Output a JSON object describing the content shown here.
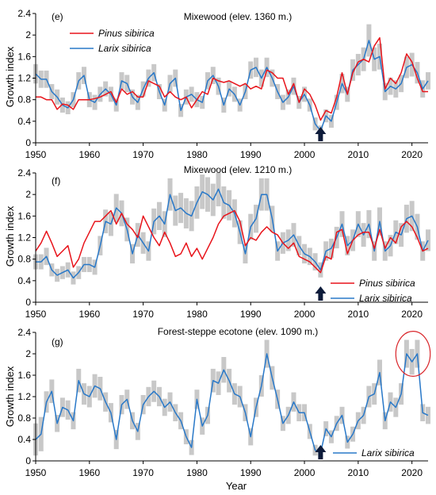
{
  "colors": {
    "pinus": "#e8141b",
    "larix": "#2878c8",
    "band": "#c8c8c8",
    "arrow": "#0d1b3a",
    "highlight": "#d9262b",
    "axis": "#000000"
  },
  "chart_data": [
    {
      "type": "line",
      "id": "e",
      "label": "(e)",
      "title": "Mixewood (elev. 1360 m.)",
      "ylabel": "Growth index",
      "xlabel": "",
      "xlim": [
        1950,
        2023
      ],
      "ylim": [
        0,
        2.4
      ],
      "xticks": [
        "1950",
        "1960",
        "1970",
        "1980",
        "1990",
        "2000",
        "2010",
        "2020"
      ],
      "yticks": [
        "0",
        "0.4",
        "0.8",
        "1.2",
        "1.6",
        "2",
        "2.4"
      ],
      "legend_position": "top-left",
      "arrow_year": 2003,
      "x": [
        1950,
        1951,
        1952,
        1953,
        1954,
        1955,
        1956,
        1957,
        1958,
        1959,
        1960,
        1961,
        1962,
        1963,
        1964,
        1965,
        1966,
        1967,
        1968,
        1969,
        1970,
        1971,
        1972,
        1973,
        1974,
        1975,
        1976,
        1977,
        1978,
        1979,
        1980,
        1981,
        1982,
        1983,
        1984,
        1985,
        1986,
        1987,
        1988,
        1989,
        1990,
        1991,
        1992,
        1993,
        1994,
        1995,
        1996,
        1997,
        1998,
        1999,
        2000,
        2001,
        2002,
        2003,
        2004,
        2005,
        2006,
        2007,
        2008,
        2009,
        2010,
        2011,
        2012,
        2013,
        2014,
        2015,
        2016,
        2017,
        2018,
        2019,
        2020,
        2021,
        2022,
        2023
      ],
      "series": [
        {
          "name": "Pinus sibirica",
          "color_key": "pinus",
          "legend_order": 1,
          "values": [
            0.85,
            0.85,
            0.8,
            0.8,
            0.62,
            0.72,
            0.7,
            0.62,
            0.8,
            0.8,
            0.8,
            0.82,
            0.85,
            0.9,
            0.95,
            0.75,
            1.0,
            0.9,
            0.95,
            0.85,
            0.85,
            1.15,
            1.1,
            1.05,
            0.85,
            0.95,
            0.85,
            0.8,
            0.85,
            0.65,
            0.8,
            0.95,
            0.9,
            1.2,
            1.15,
            1.12,
            1.15,
            1.1,
            1.05,
            1.1,
            1.0,
            1.05,
            1.0,
            1.35,
            1.3,
            1.2,
            1.2,
            0.9,
            1.1,
            0.75,
            1.0,
            0.9,
            0.7,
            0.42,
            0.6,
            0.55,
            0.85,
            1.3,
            0.9,
            1.3,
            1.5,
            1.55,
            1.5,
            1.8,
            1.95,
            1.0,
            1.2,
            1.1,
            1.3,
            1.65,
            1.5,
            1.2,
            0.95,
            0.95
          ]
        },
        {
          "name": "Larix sibirica",
          "color_key": "larix",
          "legend_order": 2,
          "values": [
            1.28,
            1.18,
            1.18,
            0.95,
            0.85,
            0.7,
            0.65,
            0.8,
            1.15,
            1.25,
            0.8,
            0.75,
            0.9,
            1.0,
            0.9,
            0.7,
            1.15,
            1.1,
            0.85,
            0.75,
            1.0,
            1.2,
            1.3,
            0.95,
            0.7,
            1.1,
            1.2,
            0.6,
            0.85,
            0.9,
            0.8,
            0.75,
            1.15,
            1.25,
            1.05,
            0.7,
            1.0,
            0.9,
            0.7,
            0.95,
            1.35,
            1.4,
            1.2,
            1.4,
            1.2,
            0.95,
            0.75,
            0.85,
            1.05,
            0.75,
            0.9,
            0.7,
            0.35,
            0.22,
            0.5,
            0.4,
            0.75,
            1.1,
            0.9,
            1.35,
            1.45,
            1.55,
            1.9,
            1.55,
            1.6,
            0.95,
            1.05,
            1.0,
            1.1,
            1.4,
            1.45,
            1.3,
            1.0,
            1.15
          ]
        }
      ],
      "band_series": "larix",
      "band_halfwidth": [
        0.18,
        0.16,
        0.16,
        0.14,
        0.14,
        0.14,
        0.12,
        0.14,
        0.16,
        0.16,
        0.14,
        0.14,
        0.14,
        0.14,
        0.14,
        0.12,
        0.16,
        0.16,
        0.14,
        0.14,
        0.14,
        0.16,
        0.16,
        0.14,
        0.12,
        0.16,
        0.16,
        0.12,
        0.14,
        0.14,
        0.14,
        0.12,
        0.16,
        0.16,
        0.16,
        0.14,
        0.14,
        0.14,
        0.12,
        0.14,
        0.16,
        0.18,
        0.16,
        0.18,
        0.16,
        0.14,
        0.14,
        0.14,
        0.16,
        0.12,
        0.14,
        0.12,
        0.12,
        0.1,
        0.12,
        0.12,
        0.14,
        0.18,
        0.14,
        0.2,
        0.2,
        0.22,
        0.3,
        0.22,
        0.24,
        0.16,
        0.16,
        0.16,
        0.16,
        0.2,
        0.22,
        0.2,
        0.16,
        0.16
      ]
    },
    {
      "type": "line",
      "id": "f",
      "label": "(f)",
      "title": "Mixewood (elev. 1210 m.)",
      "ylabel": "Growth index",
      "xlabel": "",
      "xlim": [
        1950,
        2023
      ],
      "ylim": [
        0,
        2.4
      ],
      "xticks": [
        "1950",
        "1960",
        "1970",
        "1980",
        "1990",
        "2000",
        "2010",
        "2020"
      ],
      "yticks": [
        "0",
        "0.4",
        "0.8",
        "1.2",
        "1.6",
        "2",
        "2.4"
      ],
      "legend_position": "bottom-right",
      "arrow_year": 2003,
      "x": [
        1950,
        1951,
        1952,
        1953,
        1954,
        1955,
        1956,
        1957,
        1958,
        1959,
        1960,
        1961,
        1962,
        1963,
        1964,
        1965,
        1966,
        1967,
        1968,
        1969,
        1970,
        1971,
        1972,
        1973,
        1974,
        1975,
        1976,
        1977,
        1978,
        1979,
        1980,
        1981,
        1982,
        1983,
        1984,
        1985,
        1986,
        1987,
        1988,
        1989,
        1990,
        1991,
        1992,
        1993,
        1994,
        1995,
        1996,
        1997,
        1998,
        1999,
        2000,
        2001,
        2002,
        2003,
        2004,
        2005,
        2006,
        2007,
        2008,
        2009,
        2010,
        2011,
        2012,
        2013,
        2014,
        2015,
        2016,
        2017,
        2018,
        2019,
        2020,
        2021,
        2022,
        2023
      ],
      "series": [
        {
          "name": "Pinus sibirica",
          "color_key": "pinus",
          "legend_order": 1,
          "values": [
            0.95,
            1.1,
            1.32,
            1.1,
            0.85,
            0.95,
            1.05,
            0.65,
            0.8,
            1.1,
            1.3,
            1.5,
            1.5,
            1.6,
            1.7,
            1.45,
            1.65,
            1.45,
            1.35,
            1.2,
            1.6,
            1.4,
            1.2,
            1.05,
            1.3,
            1.1,
            0.85,
            0.9,
            1.1,
            0.85,
            1.0,
            0.8,
            1.0,
            1.2,
            1.45,
            1.6,
            1.65,
            1.7,
            1.5,
            1.05,
            1.2,
            1.15,
            1.3,
            1.4,
            1.3,
            1.25,
            1.1,
            1.0,
            1.1,
            0.85,
            0.8,
            0.75,
            0.65,
            0.55,
            0.85,
            0.8,
            1.3,
            1.35,
            0.9,
            1.15,
            1.25,
            1.3,
            1.3,
            1.0,
            1.35,
            1.0,
            1.2,
            1.1,
            1.4,
            1.5,
            1.4,
            1.2,
            0.95,
            1.0
          ]
        },
        {
          "name": "Larix sibirica",
          "color_key": "larix",
          "legend_order": 2,
          "values": [
            0.75,
            0.75,
            0.85,
            0.6,
            0.5,
            0.55,
            0.6,
            0.45,
            0.55,
            0.7,
            0.7,
            0.65,
            1.05,
            1.5,
            1.45,
            1.75,
            1.65,
            1.35,
            0.9,
            1.25,
            1.1,
            0.95,
            1.5,
            1.6,
            1.45,
            2.0,
            1.7,
            1.75,
            1.65,
            1.6,
            1.85,
            2.05,
            2.0,
            1.9,
            2.1,
            1.85,
            1.8,
            1.65,
            1.3,
            0.9,
            1.4,
            1.55,
            2.0,
            2.0,
            1.55,
            0.95,
            1.1,
            1.15,
            1.25,
            1.05,
            0.9,
            0.85,
            0.75,
            0.6,
            0.95,
            1.0,
            1.2,
            1.45,
            1.05,
            1.15,
            1.45,
            1.25,
            1.45,
            0.95,
            1.5,
            0.95,
            1.05,
            1.3,
            1.25,
            1.55,
            1.6,
            1.4,
            0.95,
            1.15
          ]
        }
      ],
      "band_series": "larix",
      "band_halfwidth": [
        0.14,
        0.14,
        0.16,
        0.12,
        0.12,
        0.12,
        0.14,
        0.12,
        0.12,
        0.14,
        0.14,
        0.14,
        0.18,
        0.22,
        0.22,
        0.26,
        0.24,
        0.22,
        0.18,
        0.22,
        0.2,
        0.18,
        0.24,
        0.26,
        0.24,
        0.3,
        0.28,
        0.28,
        0.28,
        0.28,
        0.3,
        0.32,
        0.32,
        0.3,
        0.32,
        0.3,
        0.28,
        0.26,
        0.22,
        0.18,
        0.24,
        0.26,
        0.3,
        0.3,
        0.24,
        0.18,
        0.2,
        0.2,
        0.22,
        0.18,
        0.18,
        0.16,
        0.16,
        0.14,
        0.18,
        0.18,
        0.2,
        0.24,
        0.18,
        0.2,
        0.24,
        0.22,
        0.26,
        0.18,
        0.26,
        0.18,
        0.2,
        0.22,
        0.22,
        0.26,
        0.28,
        0.24,
        0.18,
        0.2
      ]
    },
    {
      "type": "line",
      "id": "g",
      "label": "(g)",
      "title": "Forest-steppe ecotone (elev. 1090 m.)",
      "ylabel": "Growth index",
      "xlabel": "Year",
      "xlim": [
        1950,
        2023
      ],
      "ylim": [
        0,
        2.4
      ],
      "xticks": [
        "1950",
        "1960",
        "1970",
        "1980",
        "1990",
        "2000",
        "2010",
        "2020"
      ],
      "yticks": [
        "0",
        "0.4",
        "0.8",
        "1.2",
        "1.6",
        "2",
        "2.4"
      ],
      "legend_position": "bottom-right",
      "arrow_year": 2003,
      "highlight": {
        "x_center": 2020.2,
        "y_center": 2.0,
        "rx_years": 3.2,
        "ry_values": 0.42
      },
      "x": [
        1950,
        1951,
        1952,
        1953,
        1954,
        1955,
        1956,
        1957,
        1958,
        1959,
        1960,
        1961,
        1962,
        1963,
        1964,
        1965,
        1966,
        1967,
        1968,
        1969,
        1970,
        1971,
        1972,
        1973,
        1974,
        1975,
        1976,
        1977,
        1978,
        1979,
        1980,
        1981,
        1982,
        1983,
        1984,
        1985,
        1986,
        1987,
        1988,
        1989,
        1990,
        1991,
        1992,
        1993,
        1994,
        1995,
        1996,
        1997,
        1998,
        1999,
        2000,
        2001,
        2002,
        2003,
        2004,
        2005,
        2006,
        2007,
        2008,
        2009,
        2010,
        2011,
        2012,
        2013,
        2014,
        2015,
        2016,
        2017,
        2018,
        2019,
        2020,
        2021,
        2022,
        2023
      ],
      "series": [
        {
          "name": "Larix sibirica",
          "color_key": "larix",
          "legend_order": 1,
          "values": [
            0.4,
            0.5,
            1.1,
            1.3,
            0.7,
            1.0,
            0.95,
            0.75,
            1.5,
            1.25,
            1.2,
            1.4,
            1.35,
            1.1,
            0.9,
            0.4,
            1.05,
            1.15,
            0.75,
            0.55,
            1.05,
            1.2,
            1.3,
            1.2,
            1.0,
            1.1,
            0.9,
            0.75,
            0.45,
            0.25,
            1.15,
            0.65,
            0.85,
            1.5,
            1.45,
            1.7,
            1.5,
            1.25,
            1.2,
            0.9,
            0.45,
            1.0,
            1.4,
            2.0,
            1.55,
            1.15,
            0.7,
            0.85,
            1.1,
            0.9,
            0.9,
            0.55,
            0.2,
            0.15,
            0.6,
            0.45,
            0.7,
            0.85,
            0.35,
            0.5,
            0.75,
            0.85,
            1.2,
            1.25,
            1.65,
            0.75,
            1.1,
            1.0,
            1.25,
            2.0,
            1.85,
            2.0,
            0.9,
            0.85
          ]
        }
      ],
      "band_series": "larix",
      "band_halfwidth": [
        0.3,
        0.32,
        0.2,
        0.22,
        0.16,
        0.18,
        0.18,
        0.16,
        0.22,
        0.2,
        0.2,
        0.22,
        0.22,
        0.18,
        0.18,
        0.18,
        0.18,
        0.18,
        0.16,
        0.16,
        0.18,
        0.18,
        0.2,
        0.18,
        0.16,
        0.18,
        0.16,
        0.16,
        0.14,
        0.14,
        0.18,
        0.16,
        0.16,
        0.22,
        0.22,
        0.24,
        0.22,
        0.2,
        0.2,
        0.16,
        0.16,
        0.18,
        0.2,
        0.26,
        0.22,
        0.18,
        0.14,
        0.16,
        0.18,
        0.16,
        0.16,
        0.14,
        0.1,
        0.1,
        0.14,
        0.12,
        0.14,
        0.16,
        0.12,
        0.14,
        0.16,
        0.16,
        0.2,
        0.2,
        0.24,
        0.16,
        0.18,
        0.18,
        0.2,
        0.26,
        0.24,
        0.26,
        0.16,
        0.16
      ]
    }
  ]
}
